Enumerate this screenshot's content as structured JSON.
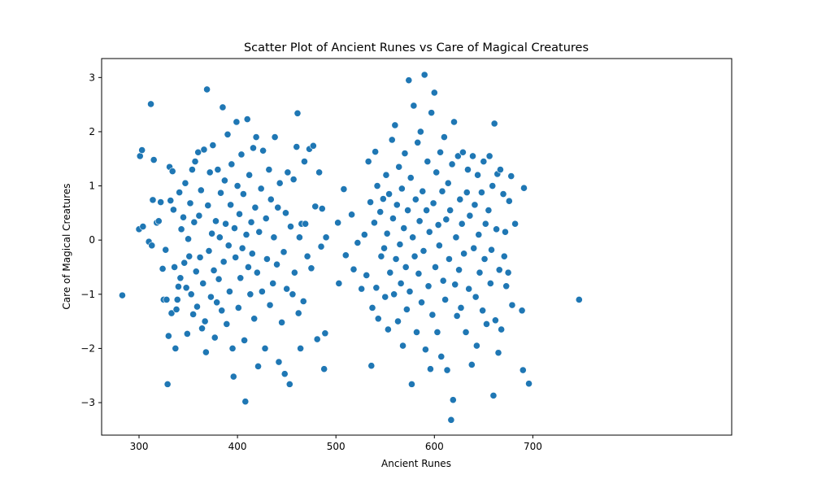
{
  "colors": {
    "marker": "#1f77b4",
    "marker_edge": "#ffffff",
    "axes": "#000000",
    "background": "#ffffff"
  },
  "chart_data": {
    "type": "scatter",
    "title": "Scatter Plot of Ancient Runes vs Care of Magical Creatures",
    "xlabel": "Ancient Runes",
    "ylabel": "Care of Magical Creatures",
    "xlim": [
      262,
      902
    ],
    "ylim": [
      -3.6,
      3.35
    ],
    "xticks": [
      300,
      400,
      500,
      600,
      700
    ],
    "yticks": [
      -3,
      -2,
      -1,
      0,
      1,
      2,
      3
    ],
    "grid": false,
    "legend": "none",
    "note_on_points": "Points are estimates read from the scatter; two clusters centered near x≈400 and x≈600.",
    "series": [
      {
        "points": [
          [
            283,
            -1.02
          ],
          [
            300,
            0.2
          ],
          [
            301,
            1.55
          ],
          [
            303,
            1.66
          ],
          [
            304,
            0.25
          ],
          [
            310,
            -0.03
          ],
          [
            312,
            2.51
          ],
          [
            313,
            -0.1
          ],
          [
            314,
            0.74
          ],
          [
            315,
            1.48
          ],
          [
            318,
            0.32
          ],
          [
            320,
            0.35
          ],
          [
            322,
            0.7
          ],
          [
            324,
            -0.53
          ],
          [
            325,
            -1.1
          ],
          [
            327,
            -0.18
          ],
          [
            328,
            -1.1
          ],
          [
            329,
            -2.66
          ],
          [
            330,
            -1.77
          ],
          [
            331,
            1.35
          ],
          [
            332,
            0.73
          ],
          [
            333,
            -1.35
          ],
          [
            334,
            1.27
          ],
          [
            335,
            0.56
          ],
          [
            336,
            -0.5
          ],
          [
            337,
            -2.0
          ],
          [
            338,
            -1.28
          ],
          [
            339,
            -1.1
          ],
          [
            340,
            -0.86
          ],
          [
            341,
            0.88
          ],
          [
            342,
            -0.7
          ],
          [
            343,
            0.2
          ],
          [
            345,
            0.42
          ],
          [
            346,
            -0.42
          ],
          [
            347,
            1.05
          ],
          [
            348,
            -0.88
          ],
          [
            349,
            -1.73
          ],
          [
            350,
            0.02
          ],
          [
            351,
            -0.3
          ],
          [
            352,
            0.68
          ],
          [
            353,
            -1.0
          ],
          [
            354,
            1.3
          ],
          [
            355,
            -1.37
          ],
          [
            356,
            0.33
          ],
          [
            357,
            1.45
          ],
          [
            358,
            -0.58
          ],
          [
            359,
            -1.23
          ],
          [
            360,
            1.62
          ],
          [
            361,
            0.45
          ],
          [
            362,
            -0.32
          ],
          [
            363,
            0.92
          ],
          [
            364,
            -1.63
          ],
          [
            365,
            -0.8
          ],
          [
            366,
            1.67
          ],
          [
            367,
            -1.5
          ],
          [
            368,
            -2.07
          ],
          [
            369,
            2.78
          ],
          [
            370,
            0.64
          ],
          [
            371,
            -0.2
          ],
          [
            372,
            1.25
          ],
          [
            373,
            -1.05
          ],
          [
            374,
            0.12
          ],
          [
            375,
            1.75
          ],
          [
            376,
            -0.56
          ],
          [
            377,
            -1.8
          ],
          [
            378,
            0.35
          ],
          [
            379,
            -1.15
          ],
          [
            380,
            1.3
          ],
          [
            381,
            -0.72
          ],
          [
            382,
            0.05
          ],
          [
            383,
            0.87
          ],
          [
            384,
            -1.3
          ],
          [
            385,
            2.45
          ],
          [
            386,
            -0.4
          ],
          [
            387,
            1.1
          ],
          [
            388,
            0.3
          ],
          [
            389,
            -1.55
          ],
          [
            390,
            1.95
          ],
          [
            391,
            -0.1
          ],
          [
            392,
            -0.95
          ],
          [
            393,
            0.65
          ],
          [
            394,
            1.4
          ],
          [
            395,
            -2.0
          ],
          [
            396,
            -2.52
          ],
          [
            397,
            0.22
          ],
          [
            398,
            -0.32
          ],
          [
            399,
            2.18
          ],
          [
            400,
            1.0
          ],
          [
            401,
            -1.25
          ],
          [
            402,
            0.48
          ],
          [
            403,
            -0.7
          ],
          [
            404,
            1.58
          ],
          [
            405,
            -0.15
          ],
          [
            406,
            0.85
          ],
          [
            407,
            -1.85
          ],
          [
            408,
            -2.98
          ],
          [
            409,
            0.1
          ],
          [
            410,
            2.23
          ],
          [
            411,
            -0.5
          ],
          [
            412,
            1.2
          ],
          [
            413,
            -1.0
          ],
          [
            414,
            0.33
          ],
          [
            415,
            -0.25
          ],
          [
            416,
            1.7
          ],
          [
            417,
            -1.45
          ],
          [
            418,
            0.6
          ],
          [
            419,
            1.9
          ],
          [
            420,
            -0.6
          ],
          [
            421,
            -2.33
          ],
          [
            422,
            0.15
          ],
          [
            424,
            0.95
          ],
          [
            425,
            -0.95
          ],
          [
            426,
            1.65
          ],
          [
            428,
            -2.0
          ],
          [
            429,
            0.4
          ],
          [
            430,
            -0.35
          ],
          [
            432,
            1.3
          ],
          [
            433,
            -1.2
          ],
          [
            434,
            0.75
          ],
          [
            436,
            -0.8
          ],
          [
            437,
            0.05
          ],
          [
            438,
            1.9
          ],
          [
            440,
            -0.45
          ],
          [
            441,
            0.6
          ],
          [
            442,
            -2.25
          ],
          [
            443,
            1.05
          ],
          [
            445,
            -1.52
          ],
          [
            447,
            -0.22
          ],
          [
            448,
            -2.47
          ],
          [
            449,
            0.5
          ],
          [
            450,
            -0.9
          ],
          [
            451,
            1.25
          ],
          [
            453,
            -2.66
          ],
          [
            454,
            0.25
          ],
          [
            456,
            -1.0
          ],
          [
            457,
            1.12
          ],
          [
            458,
            -0.6
          ],
          [
            460,
            1.72
          ],
          [
            461,
            2.34
          ],
          [
            462,
            -1.35
          ],
          [
            463,
            0.05
          ],
          [
            464,
            -2.0
          ],
          [
            465,
            0.3
          ],
          [
            467,
            -1.13
          ],
          [
            468,
            1.45
          ],
          [
            469,
            0.3
          ],
          [
            471,
            -0.3
          ],
          [
            473,
            1.68
          ],
          [
            475,
            -0.52
          ],
          [
            477,
            1.74
          ],
          [
            479,
            0.62
          ],
          [
            481,
            -1.83
          ],
          [
            483,
            1.25
          ],
          [
            485,
            -0.12
          ],
          [
            486,
            0.58
          ],
          [
            488,
            -2.38
          ],
          [
            489,
            -1.72
          ],
          [
            490,
            0.05
          ],
          [
            502,
            0.32
          ],
          [
            503,
            -0.8
          ],
          [
            508,
            0.94
          ],
          [
            510,
            -0.28
          ],
          [
            516,
            0.47
          ],
          [
            518,
            -0.54
          ],
          [
            522,
            -0.05
          ],
          [
            526,
            -0.9
          ],
          [
            529,
            0.1
          ],
          [
            531,
            -0.65
          ],
          [
            533,
            1.45
          ],
          [
            535,
            0.7
          ],
          [
            536,
            -2.32
          ],
          [
            537,
            -1.25
          ],
          [
            539,
            0.32
          ],
          [
            540,
            1.63
          ],
          [
            541,
            -0.88
          ],
          [
            542,
            1.0
          ],
          [
            543,
            -1.45
          ],
          [
            545,
            0.52
          ],
          [
            546,
            -0.3
          ],
          [
            548,
            0.76
          ],
          [
            549,
            -0.15
          ],
          [
            550,
            -1.05
          ],
          [
            551,
            1.2
          ],
          [
            552,
            0.12
          ],
          [
            553,
            -1.65
          ],
          [
            554,
            0.85
          ],
          [
            555,
            -0.6
          ],
          [
            557,
            1.85
          ],
          [
            558,
            0.4
          ],
          [
            559,
            -1.0
          ],
          [
            560,
            2.12
          ],
          [
            561,
            -0.35
          ],
          [
            562,
            0.65
          ],
          [
            563,
            -1.5
          ],
          [
            564,
            1.35
          ],
          [
            565,
            -0.08
          ],
          [
            566,
            -0.8
          ],
          [
            567,
            0.95
          ],
          [
            568,
            -1.95
          ],
          [
            569,
            0.22
          ],
          [
            570,
            1.6
          ],
          [
            571,
            -0.5
          ],
          [
            572,
            -1.28
          ],
          [
            573,
            0.55
          ],
          [
            574,
            2.95
          ],
          [
            575,
            -0.95
          ],
          [
            576,
            1.15
          ],
          [
            577,
            -2.66
          ],
          [
            578,
            0.05
          ],
          [
            579,
            2.48
          ],
          [
            580,
            -0.3
          ],
          [
            581,
            0.75
          ],
          [
            582,
            -1.7
          ],
          [
            583,
            1.8
          ],
          [
            584,
            -0.62
          ],
          [
            585,
            0.35
          ],
          [
            586,
            2.0
          ],
          [
            587,
            -1.15
          ],
          [
            588,
            0.9
          ],
          [
            589,
            -0.2
          ],
          [
            590,
            3.05
          ],
          [
            591,
            -2.02
          ],
          [
            592,
            0.55
          ],
          [
            593,
            1.45
          ],
          [
            594,
            -0.85
          ],
          [
            595,
            0.15
          ],
          [
            596,
            -2.38
          ],
          [
            597,
            2.35
          ],
          [
            598,
            -1.38
          ],
          [
            599,
            0.68
          ],
          [
            600,
            2.72
          ],
          [
            601,
            -0.5
          ],
          [
            602,
            1.25
          ],
          [
            603,
            -1.7
          ],
          [
            604,
            0.28
          ],
          [
            605,
            -0.1
          ],
          [
            606,
            1.62
          ],
          [
            607,
            -2.15
          ],
          [
            608,
            0.9
          ],
          [
            609,
            -0.75
          ],
          [
            610,
            1.9
          ],
          [
            611,
            -1.1
          ],
          [
            612,
            0.38
          ],
          [
            613,
            -2.4
          ],
          [
            614,
            1.05
          ],
          [
            615,
            -0.35
          ],
          [
            616,
            0.55
          ],
          [
            617,
            -3.32
          ],
          [
            618,
            1.4
          ],
          [
            619,
            -2.95
          ],
          [
            620,
            2.18
          ],
          [
            621,
            -0.82
          ],
          [
            622,
            0.05
          ],
          [
            623,
            -1.4
          ],
          [
            624,
            1.55
          ],
          [
            625,
            -0.55
          ],
          [
            626,
            0.75
          ],
          [
            627,
            -1.25
          ],
          [
            628,
            0.3
          ],
          [
            629,
            1.62
          ],
          [
            630,
            -0.25
          ],
          [
            632,
            -1.7
          ],
          [
            633,
            0.88
          ],
          [
            634,
            1.3
          ],
          [
            635,
            -0.9
          ],
          [
            636,
            0.45
          ],
          [
            638,
            -2.3
          ],
          [
            639,
            1.55
          ],
          [
            640,
            -0.15
          ],
          [
            641,
            0.65
          ],
          [
            642,
            -1.05
          ],
          [
            643,
            -1.95
          ],
          [
            644,
            1.2
          ],
          [
            645,
            0.1
          ],
          [
            646,
            -0.6
          ],
          [
            648,
            0.88
          ],
          [
            649,
            -1.3
          ],
          [
            650,
            1.45
          ],
          [
            651,
            -0.35
          ],
          [
            652,
            0.3
          ],
          [
            653,
            -1.55
          ],
          [
            655,
            0.55
          ],
          [
            656,
            1.55
          ],
          [
            657,
            -0.8
          ],
          [
            658,
            -0.18
          ],
          [
            659,
            1.0
          ],
          [
            660,
            -2.87
          ],
          [
            661,
            2.15
          ],
          [
            662,
            -1.48
          ],
          [
            663,
            0.2
          ],
          [
            664,
            1.22
          ],
          [
            665,
            -2.08
          ],
          [
            666,
            -0.55
          ],
          [
            667,
            1.3
          ],
          [
            668,
            -1.65
          ],
          [
            670,
            0.85
          ],
          [
            671,
            -0.3
          ],
          [
            672,
            0.15
          ],
          [
            673,
            -0.85
          ],
          [
            675,
            -0.6
          ],
          [
            676,
            0.72
          ],
          [
            678,
            1.18
          ],
          [
            679,
            -1.2
          ],
          [
            682,
            0.3
          ],
          [
            689,
            -1.3
          ],
          [
            690,
            -2.4
          ],
          [
            691,
            0.96
          ],
          [
            696,
            -2.65
          ],
          [
            747,
            -1.1
          ]
        ]
      }
    ]
  }
}
